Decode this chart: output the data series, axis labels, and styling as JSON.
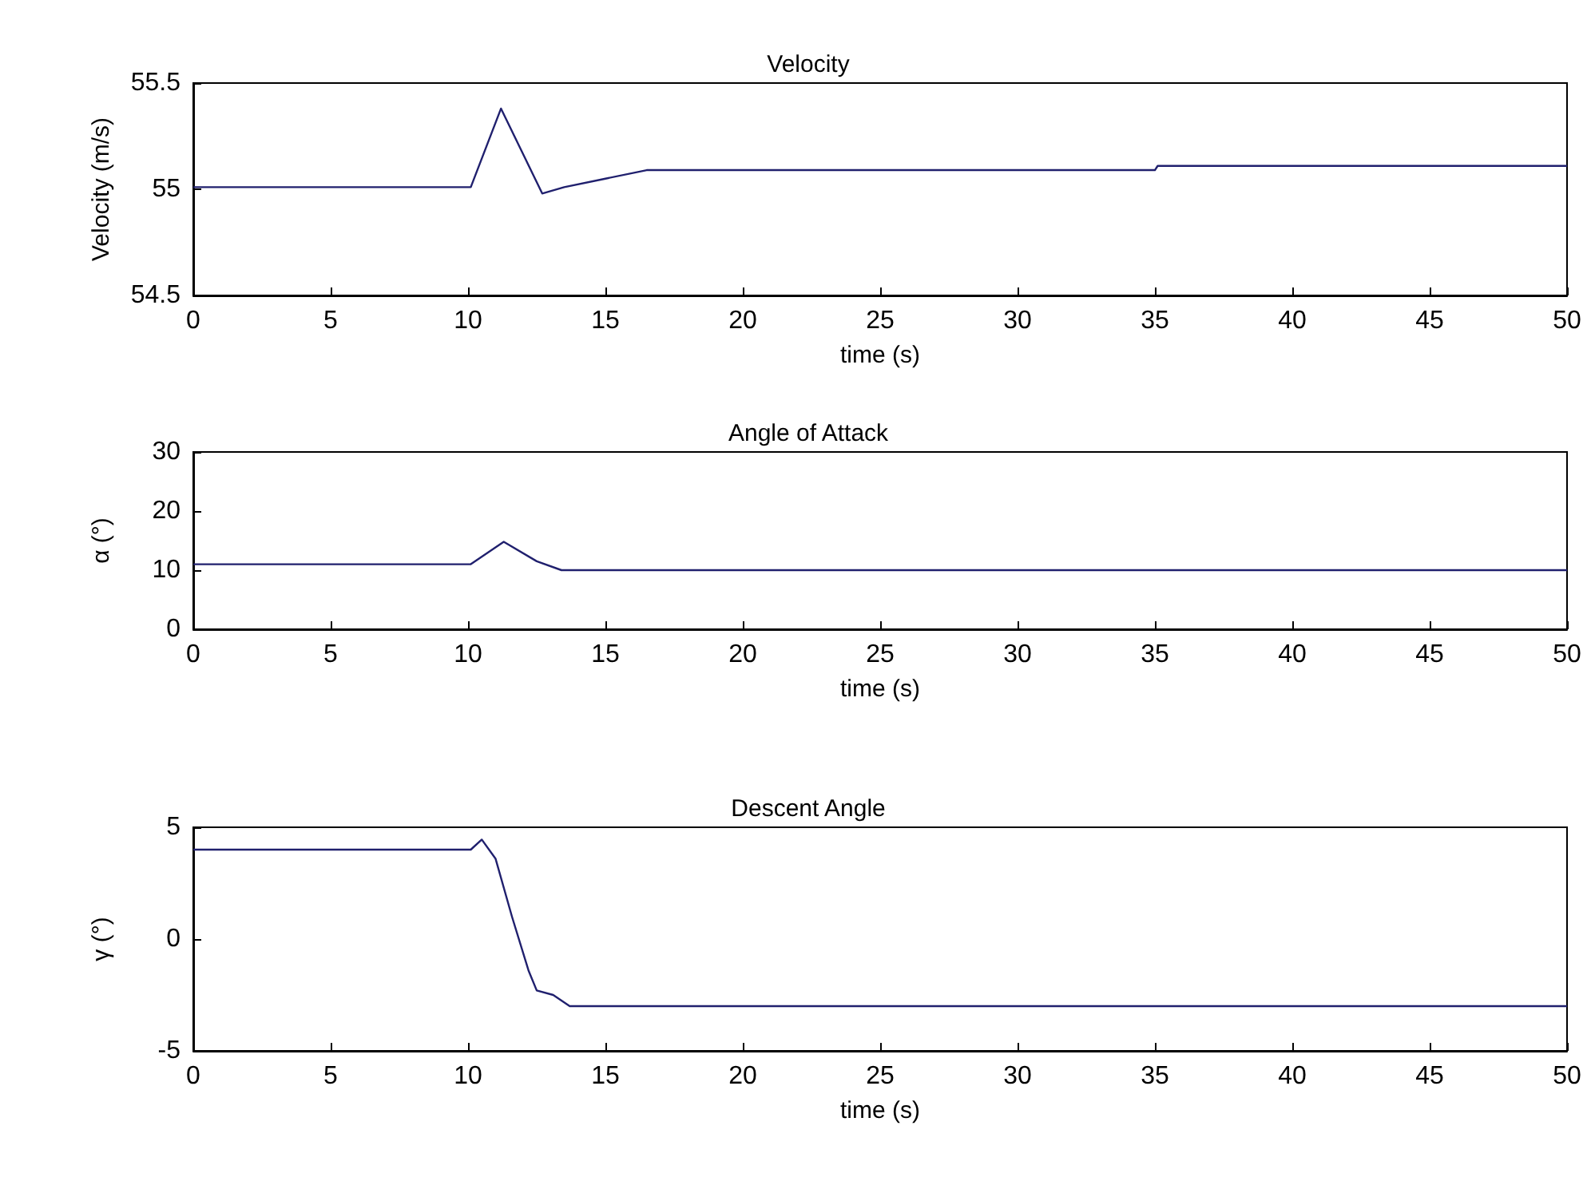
{
  "chart_data": [
    {
      "type": "line",
      "title": "Velocity",
      "xlabel": "time (s)",
      "ylabel": "Velocity (m/s)",
      "color": "#20206e",
      "x": [
        0,
        10.1,
        11.2,
        12.7,
        13.5,
        15,
        16.5,
        35,
        35.1,
        50
      ],
      "values": [
        55.01,
        55.01,
        55.38,
        54.98,
        55.01,
        55.05,
        55.09,
        55.09,
        55.11,
        55.11
      ],
      "xlim": [
        0,
        50
      ],
      "xticks": [
        0,
        5,
        10,
        15,
        20,
        25,
        30,
        35,
        40,
        45,
        50
      ],
      "ylim": [
        54.5,
        55.5
      ],
      "yticks": [
        54.5,
        55,
        55.5
      ],
      "grid": false
    },
    {
      "type": "line",
      "title": "Angle of Attack",
      "xlabel": "time (s)",
      "ylabel": "α (°)",
      "color": "#20206e",
      "x": [
        0,
        10.1,
        11.3,
        12.5,
        13.4,
        50
      ],
      "values": [
        11,
        11,
        14.8,
        11.5,
        10,
        10
      ],
      "xlim": [
        0,
        50
      ],
      "xticks": [
        0,
        5,
        10,
        15,
        20,
        25,
        30,
        35,
        40,
        45,
        50
      ],
      "ylim": [
        0,
        30
      ],
      "yticks": [
        0,
        10,
        20,
        30
      ],
      "grid": false
    },
    {
      "type": "line",
      "title": "Descent Angle",
      "xlabel": "time (s)",
      "ylabel": "γ (°)",
      "color": "#20206e",
      "x": [
        0,
        10.1,
        10.5,
        11.0,
        11.6,
        12.2,
        12.5,
        13.1,
        13.7,
        50
      ],
      "values": [
        4,
        4,
        4.45,
        3.6,
        1.0,
        -1.4,
        -2.3,
        -2.5,
        -3,
        -3
      ],
      "xlim": [
        0,
        50
      ],
      "xticks": [
        0,
        5,
        10,
        15,
        20,
        25,
        30,
        35,
        40,
        45,
        50
      ],
      "ylim": [
        -5,
        5
      ],
      "yticks": [
        -5,
        0,
        5
      ],
      "grid": false
    }
  ]
}
